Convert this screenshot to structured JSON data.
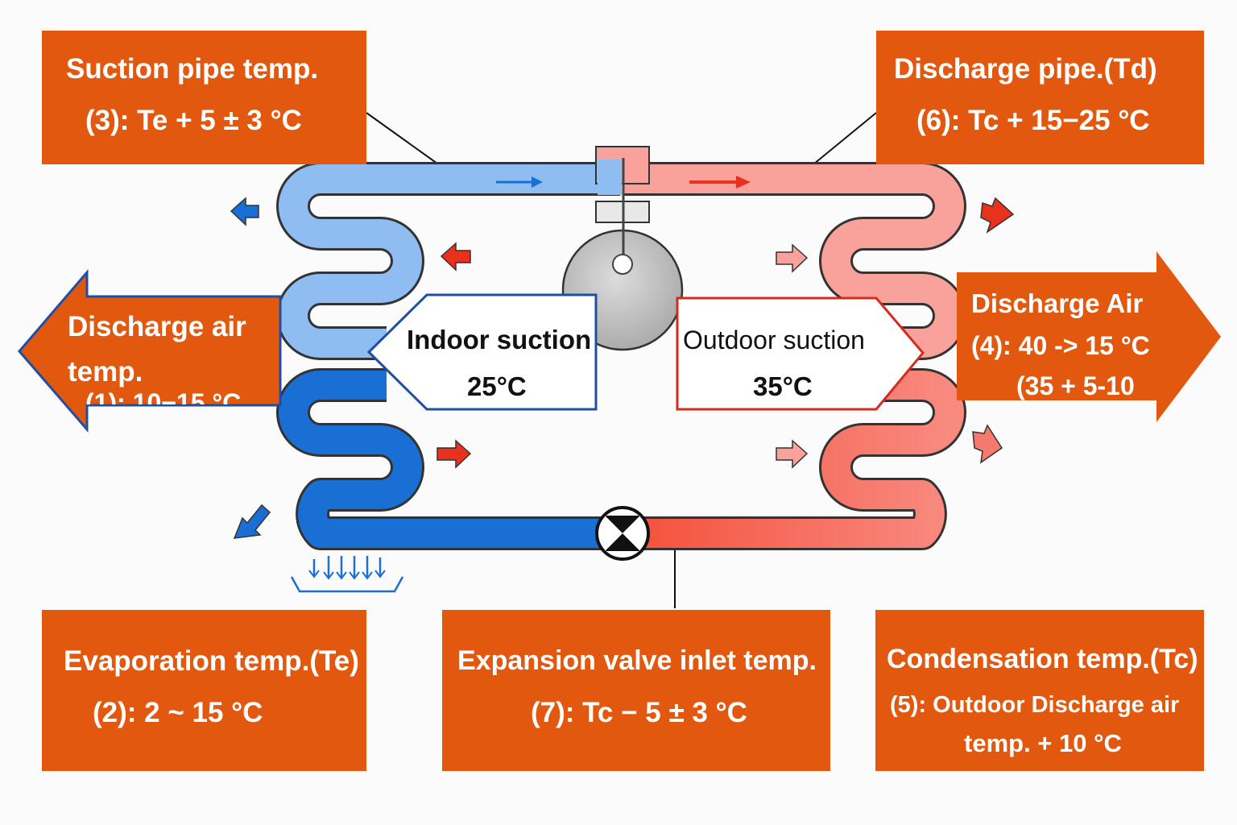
{
  "colors": {
    "label_bg": "#e2580f",
    "cold_pipe": "#1a6fd4",
    "cold_pipe_light": "#8fbdf2",
    "hot_pipe": "#f47a6e",
    "hot_pipe_light": "#f8a29b",
    "compressor": "#c4c4c4",
    "indoor_border": "#1f4fa3",
    "outdoor_border": "#d42b1f"
  },
  "labels": {
    "suction_pipe": {
      "line1": "Suction pipe temp.",
      "line2": "(3):  Te + 5 ± 3 °C"
    },
    "discharge_pipe": {
      "line1": "Discharge pipe.(Td)",
      "line2": "(6):  Tc +  15−25 °C"
    },
    "discharge_air_indoor": {
      "line1": "Discharge air",
      "line2": "temp.",
      "line3": "(1):  10−15 °C"
    },
    "discharge_air_outdoor": {
      "line1": "Discharge Air",
      "line2": "(4): 40 -> 15 °C",
      "line3": "(35 + 5-10"
    },
    "indoor_suction": {
      "line1": "Indoor suction",
      "line2": "25°C"
    },
    "outdoor_suction": {
      "line1": "Outdoor suction",
      "line2": "35°C"
    },
    "evaporation": {
      "line1": "Evaporation  temp.(Te)",
      "line2": "(2):  2 ~ 15  °C"
    },
    "expansion_valve": {
      "line1": "Expansion valve inlet temp.",
      "line2": "(7):  Tc − 5 ± 3 °C"
    },
    "condensation": {
      "line1": "Condensation temp.(Tc)",
      "line2": "(5): Outdoor Discharge air",
      "line3": "temp. + 10 °C"
    }
  },
  "icons": [
    "compressor-icon",
    "expansion-valve-icon",
    "airflow-arrow-icon",
    "drain-pan-icon"
  ]
}
